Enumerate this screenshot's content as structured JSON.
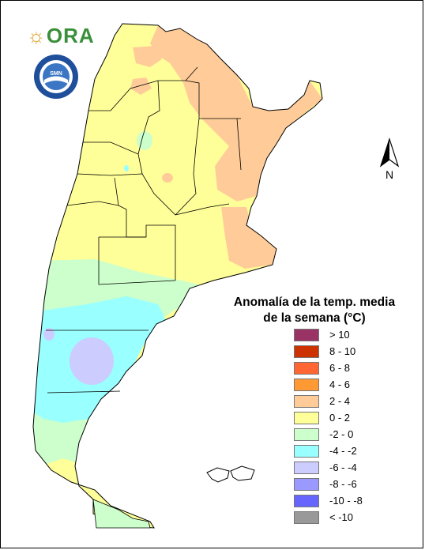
{
  "logos": {
    "ora_text": "ORA",
    "smn_ring_text": "SERVICIO METEOROLÓGICO NACIONAL",
    "smn_bottom_text": "ARGENTINA",
    "smn_center_text": "SMN"
  },
  "compass": {
    "label": "N"
  },
  "legend": {
    "title_line1": "Anomalía de la temp. media",
    "title_line2": "de la semana (°C)",
    "items": [
      {
        "label": "> 10",
        "color": "#993366"
      },
      {
        "label": "8 - 10",
        "color": "#cc3300"
      },
      {
        "label": "6 - 8",
        "color": "#ff6633"
      },
      {
        "label": "4 - 6",
        "color": "#ff9933"
      },
      {
        "label": "2 - 4",
        "color": "#ffcc99"
      },
      {
        "label": "0 - 2",
        "color": "#ffff99"
      },
      {
        "label": "-2 - 0",
        "color": "#ccffcc"
      },
      {
        "label": "-4 - -2",
        "color": "#99ffff"
      },
      {
        "label": "-6 - -4",
        "color": "#ccccff"
      },
      {
        "label": "-8 - -6",
        "color": "#9999ff"
      },
      {
        "label": "-10 - -8",
        "color": "#6666ff"
      },
      {
        "label": "< -10",
        "color": "#999999"
      }
    ]
  }
}
